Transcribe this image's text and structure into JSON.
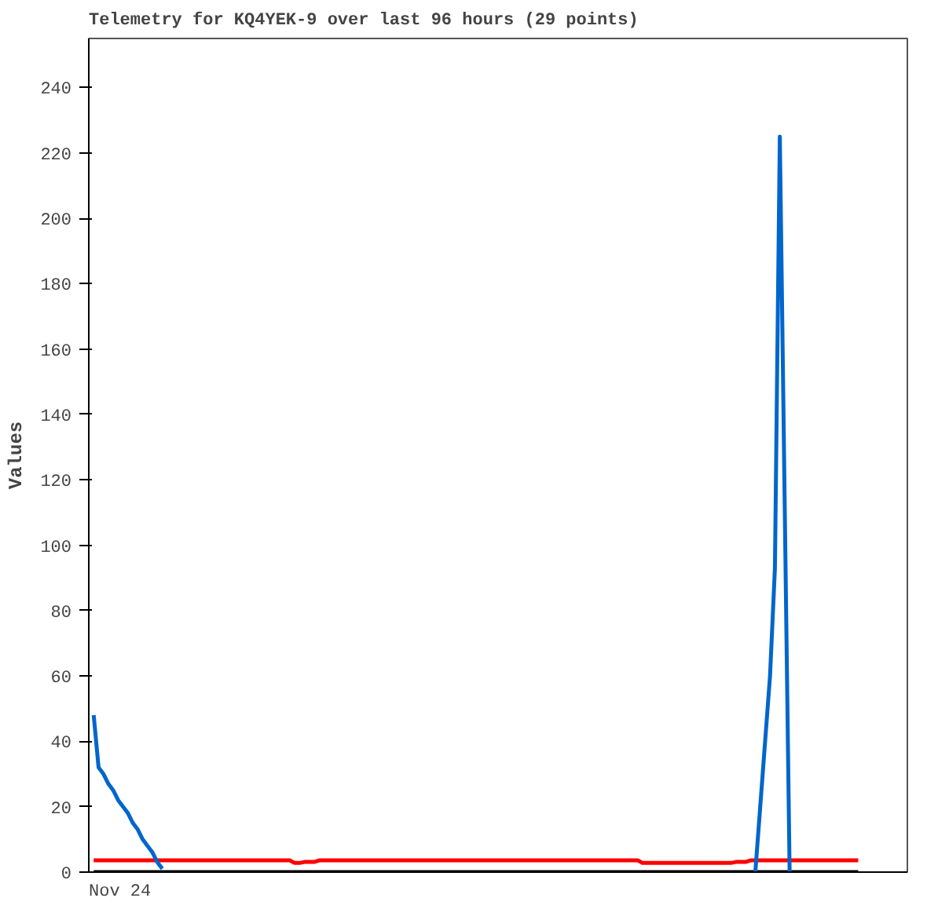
{
  "chart_data": {
    "type": "line",
    "title": "Telemetry for KQ4YEK-9 over last 96 hours (29 points)",
    "ylabel": "Values",
    "annotations": [
      "Nov 24"
    ],
    "ylim": [
      0,
      255
    ],
    "yticks": [
      0,
      20,
      40,
      60,
      80,
      100,
      120,
      140,
      160,
      180,
      200,
      220,
      240
    ],
    "tick_labels": "y",
    "grid": false,
    "marker": "none",
    "line_style": "solid",
    "categories": [
      null,
      null,
      null,
      null,
      null,
      null,
      null,
      null,
      null,
      null,
      null,
      null,
      null,
      null,
      null,
      null,
      null,
      null,
      null,
      null,
      null,
      null,
      null,
      null,
      null,
      null,
      null,
      null,
      null,
      null,
      null,
      null,
      null,
      null,
      null,
      null,
      null,
      null,
      null,
      null,
      null,
      null,
      null,
      null,
      null,
      null,
      null,
      null,
      null,
      null,
      null,
      null,
      null,
      null,
      null,
      null,
      null,
      null,
      null,
      null,
      null,
      null,
      null,
      null,
      null,
      null,
      null,
      null,
      null,
      null,
      null,
      null,
      null,
      null,
      null,
      null,
      null,
      null,
      null,
      null,
      null,
      null,
      null,
      null,
      null,
      null,
      null,
      null,
      null,
      null,
      null,
      null,
      null,
      null,
      null,
      null,
      null,
      null,
      null,
      null,
      null,
      null,
      null,
      null,
      null,
      null,
      null,
      null,
      null,
      null,
      null,
      null,
      null,
      null,
      null,
      null,
      null,
      null,
      null,
      null,
      null,
      null,
      null,
      null,
      null,
      null,
      null,
      null,
      null,
      null,
      null,
      null,
      null,
      null,
      null,
      null,
      null,
      null,
      null,
      null,
      null,
      null,
      null,
      null,
      null,
      null,
      null,
      null,
      null,
      null,
      null,
      null,
      null,
      null,
      null,
      null,
      null
    ],
    "series": [
      {
        "color": "#000000",
        "values": [
          0,
          0,
          0,
          0,
          0,
          0,
          0,
          0,
          0,
          0,
          0,
          0,
          0,
          0,
          0,
          0,
          0,
          0,
          0,
          0,
          0,
          0,
          0,
          0,
          0,
          0,
          0,
          0,
          0,
          0,
          0,
          0,
          0,
          0,
          0,
          0,
          0,
          0,
          0,
          0,
          0,
          0,
          0,
          0,
          0,
          0,
          0,
          0,
          0,
          0,
          0,
          0,
          0,
          0,
          0,
          0,
          0,
          0,
          0,
          0,
          0,
          0,
          0,
          0,
          0,
          0,
          0,
          0,
          0,
          0,
          0,
          0,
          0,
          0,
          0,
          0,
          0,
          0,
          0,
          0,
          0,
          0,
          0,
          0,
          0,
          0,
          0,
          0,
          0,
          0,
          0,
          0,
          0,
          0,
          0,
          0,
          0,
          0,
          0,
          0,
          0,
          0,
          0,
          0,
          0,
          0,
          0,
          0,
          0,
          0,
          0,
          0,
          0,
          0,
          0,
          0,
          0,
          0,
          0,
          0,
          0,
          0,
          0,
          0,
          0,
          0,
          0,
          0,
          0,
          0,
          0,
          0,
          0,
          0,
          0,
          0,
          0,
          0,
          0,
          0,
          0,
          0,
          0,
          0,
          0,
          0,
          0,
          0,
          0,
          0,
          0,
          0,
          0,
          0,
          0,
          0,
          0
        ]
      },
      {
        "color": "#ff0000",
        "values": [
          3.6,
          3.6,
          3.6,
          3.6,
          3.6,
          3.6,
          3.6,
          3.6,
          3.6,
          3.6,
          3.6,
          3.6,
          3.6,
          3.6,
          3.6,
          3.6,
          3.6,
          3.6,
          3.6,
          3.6,
          3.6,
          3.6,
          3.6,
          3.6,
          3.6,
          3.6,
          3.6,
          3.6,
          3.6,
          3.6,
          3.6,
          3.6,
          3.6,
          3.6,
          3.6,
          3.6,
          3.6,
          3.6,
          3.6,
          3.6,
          3.6,
          2.8,
          2.8,
          3.1,
          3.1,
          3.1,
          3.6,
          3.6,
          3.6,
          3.6,
          3.6,
          3.6,
          3.6,
          3.6,
          3.6,
          3.6,
          3.6,
          3.6,
          3.6,
          3.6,
          3.6,
          3.6,
          3.6,
          3.6,
          3.6,
          3.6,
          3.6,
          3.6,
          3.6,
          3.6,
          3.6,
          3.6,
          3.6,
          3.6,
          3.6,
          3.6,
          3.6,
          3.6,
          3.6,
          3.6,
          3.6,
          3.6,
          3.6,
          3.6,
          3.6,
          3.6,
          3.6,
          3.6,
          3.6,
          3.6,
          3.6,
          3.6,
          3.6,
          3.6,
          3.6,
          3.6,
          3.6,
          3.6,
          3.6,
          3.6,
          3.6,
          3.6,
          3.6,
          3.6,
          3.6,
          3.6,
          3.6,
          3.6,
          3.6,
          3.6,
          3.6,
          3.6,
          2.8,
          2.8,
          2.8,
          2.8,
          2.8,
          2.8,
          2.8,
          2.8,
          2.8,
          2.8,
          2.8,
          2.8,
          2.8,
          2.8,
          2.8,
          2.8,
          2.8,
          2.8,
          2.8,
          3.1,
          3.1,
          3.1,
          3.6,
          3.6,
          3.6,
          3.6,
          3.6,
          3.6,
          3.6,
          3.6,
          3.6,
          3.6,
          3.6,
          3.6,
          3.6,
          3.6,
          3.6,
          3.6,
          3.6,
          3.6,
          3.6,
          3.6,
          3.6,
          3.6,
          3.6
        ]
      },
      {
        "color": "#0066cc",
        "values": [
          48,
          32,
          30,
          27,
          25,
          22,
          20,
          18,
          15,
          13,
          10,
          8,
          6,
          3,
          1,
          null,
          null,
          null,
          null,
          null,
          null,
          null,
          null,
          null,
          null,
          null,
          null,
          null,
          null,
          null,
          null,
          null,
          null,
          null,
          null,
          null,
          null,
          null,
          null,
          null,
          null,
          null,
          null,
          null,
          null,
          null,
          null,
          null,
          null,
          null,
          null,
          null,
          null,
          null,
          null,
          null,
          null,
          null,
          null,
          null,
          null,
          null,
          null,
          null,
          null,
          null,
          null,
          null,
          null,
          null,
          null,
          null,
          null,
          null,
          null,
          null,
          null,
          null,
          null,
          null,
          null,
          null,
          null,
          null,
          null,
          null,
          null,
          null,
          null,
          null,
          null,
          null,
          null,
          null,
          null,
          null,
          null,
          null,
          null,
          null,
          null,
          null,
          null,
          null,
          null,
          null,
          null,
          null,
          null,
          null,
          null,
          null,
          null,
          null,
          null,
          null,
          null,
          null,
          null,
          null,
          null,
          null,
          null,
          null,
          null,
          null,
          null,
          null,
          null,
          null,
          null,
          null,
          null,
          null,
          null,
          0,
          20,
          40,
          60,
          93,
          225,
          112,
          0,
          null,
          null,
          null,
          null,
          null,
          null,
          null,
          null,
          null,
          null,
          null,
          null,
          null,
          null
        ]
      }
    ]
  }
}
